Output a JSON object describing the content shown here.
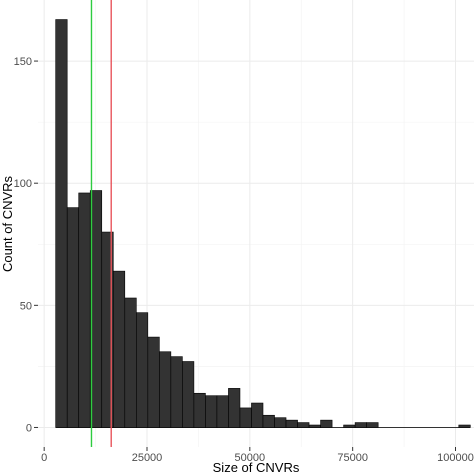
{
  "chart_data": {
    "type": "bar",
    "subtype": "histogram",
    "xlabel": "Size of CNVRs",
    "ylabel": "Count of CNVRs",
    "xlim": [
      -1500,
      104500
    ],
    "ylim": [
      -8,
      175
    ],
    "x_ticks": [
      0,
      25000,
      50000,
      75000,
      100000
    ],
    "x_tick_labels": [
      "0",
      "25000",
      "50000",
      "75000",
      "100000"
    ],
    "y_ticks": [
      0,
      50,
      100,
      150
    ],
    "y_tick_labels": [
      "0",
      "50",
      "100",
      "150"
    ],
    "bin_width": 2800,
    "bin_starts": [
      2800,
      5600,
      8400,
      11200,
      14000,
      16800,
      19600,
      22400,
      25200,
      28000,
      30800,
      33600,
      36400,
      39200,
      42000,
      44800,
      47600,
      50400,
      53200,
      56000,
      58800,
      61600,
      64400,
      67200,
      70000,
      72800,
      75600,
      78400,
      81200,
      84000,
      86800,
      89600,
      92400,
      95200,
      98000,
      100800
    ],
    "counts": [
      167,
      90,
      96,
      97,
      80,
      64,
      53,
      47,
      37,
      31,
      29,
      27,
      14,
      13,
      13,
      16,
      8,
      10,
      5,
      4,
      3,
      2,
      1,
      3,
      0,
      1,
      2,
      2,
      0,
      0,
      0,
      0,
      0,
      0,
      0,
      1
    ],
    "vlines": [
      {
        "x": 11500,
        "color": "#2ecc40"
      },
      {
        "x": 16300,
        "color": "#e8555c"
      }
    ],
    "bar_fill": "#333333",
    "bar_stroke": "#000000",
    "grid": true,
    "legend": "none"
  }
}
